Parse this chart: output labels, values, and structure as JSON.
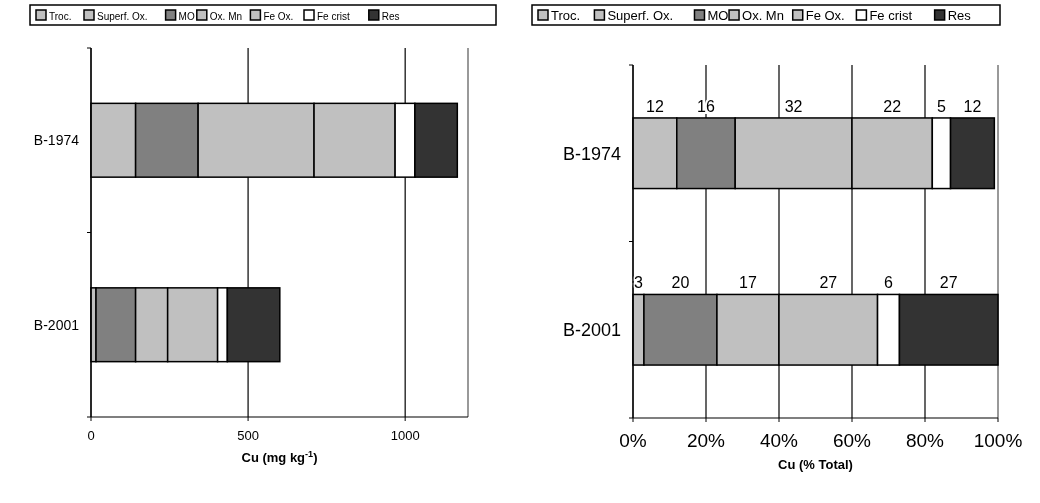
{
  "chart_data": [
    {
      "type": "bar",
      "orientation": "horizontal",
      "stacked": true,
      "xlabel": "Cu (mg kg$^{-1}$)",
      "categories": [
        "B-1974",
        "B-2001"
      ],
      "xlim": [
        0,
        1200
      ],
      "xticks": [
        0,
        500,
        1000
      ],
      "grid": "x",
      "legend": "top",
      "series": [
        {
          "name": "Troc.",
          "color": "#c0c0c0",
          "values": [
            0,
            0
          ]
        },
        {
          "name": "Superf. Ox.",
          "color": "#c0c0c0",
          "values": [
            142,
            16
          ]
        },
        {
          "name": "MO",
          "color": "#808080",
          "values": [
            199,
            126
          ]
        },
        {
          "name": "Ox. Mn",
          "color": "#c0c0c0",
          "values": [
            369,
            102
          ]
        },
        {
          "name": "Fe Ox.",
          "color": "#c0c0c0",
          "values": [
            258,
            159
          ]
        },
        {
          "name": "Fe crist",
          "color": "#ffffff",
          "values": [
            63,
            31
          ]
        },
        {
          "name": "Res",
          "color": "#333333",
          "values": [
            135,
            167
          ]
        }
      ]
    },
    {
      "type": "bar",
      "orientation": "horizontal",
      "stacked": true,
      "xlabel": "Cu (% Total)",
      "categories": [
        "B-1974",
        "B-2001"
      ],
      "xlim": [
        0,
        100
      ],
      "xticks": [
        {
          "value": 0,
          "label": "0%"
        },
        {
          "value": 20,
          "label": "20%"
        },
        {
          "value": 40,
          "label": "40%"
        },
        {
          "value": 60,
          "label": "60%"
        },
        {
          "value": 80,
          "label": "80%"
        },
        {
          "value": 100,
          "label": "100%"
        }
      ],
      "grid": "x",
      "legend": "top",
      "series": [
        {
          "name": "Troc.",
          "color": "#c0c0c0",
          "values": [
            0,
            0
          ],
          "value_labels": [
            null,
            null
          ]
        },
        {
          "name": "Superf. Ox.",
          "color": "#c0c0c0",
          "values": [
            12,
            3
          ],
          "value_labels": [
            "12",
            "3"
          ]
        },
        {
          "name": "MO",
          "color": "#808080",
          "values": [
            16,
            20
          ],
          "value_labels": [
            "16",
            "20"
          ]
        },
        {
          "name": "Ox. Mn",
          "color": "#c0c0c0",
          "values": [
            32,
            17
          ],
          "value_labels": [
            "32",
            "17"
          ]
        },
        {
          "name": "Fe Ox.",
          "color": "#c0c0c0",
          "values": [
            22,
            27
          ],
          "value_labels": [
            "22",
            "27"
          ]
        },
        {
          "name": "Fe crist",
          "color": "#ffffff",
          "values": [
            5,
            6
          ],
          "value_labels": [
            "5",
            "6"
          ]
        },
        {
          "name": "Res",
          "color": "#333333",
          "values": [
            12,
            27
          ],
          "value_labels": [
            "12",
            "27"
          ]
        }
      ]
    }
  ]
}
